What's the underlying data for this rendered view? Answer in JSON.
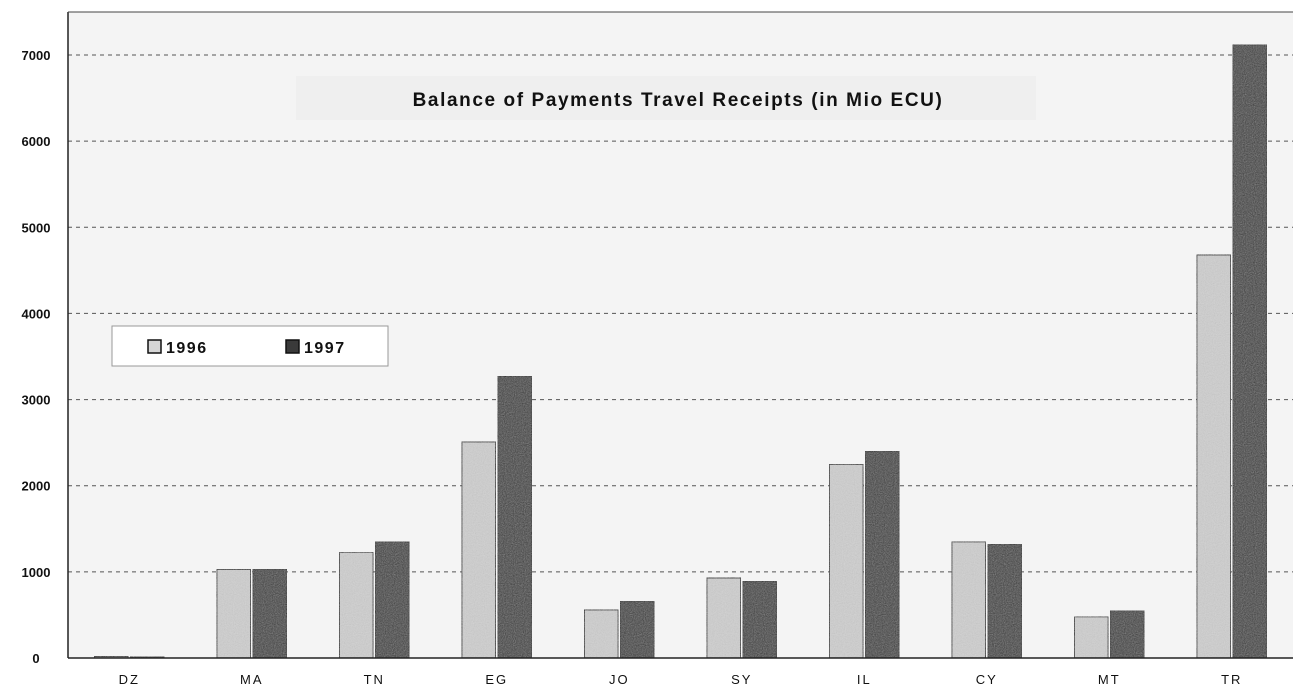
{
  "chart_data": {
    "type": "bar",
    "title": "Balance of Payments Travel Receipts (in Mio ECU)",
    "xlabel": "",
    "ylabel": "",
    "categories": [
      "DZ",
      "MA",
      "TN",
      "EG",
      "JO",
      "SY",
      "IL",
      "CY",
      "MT",
      "TR"
    ],
    "series": [
      {
        "name": "1996",
        "values": [
          20,
          1030,
          1230,
          2510,
          560,
          930,
          2250,
          1350,
          480,
          4680
        ]
      },
      {
        "name": "1997",
        "values": [
          15,
          1030,
          1350,
          3270,
          660,
          890,
          2400,
          1320,
          550,
          7120
        ]
      }
    ],
    "ylim": [
      0,
      7000
    ],
    "yticks": [
      "0",
      "1000",
      "2000",
      "3000",
      "4000",
      "5000",
      "6000",
      "7000"
    ],
    "grid": true,
    "legend_placement": "left",
    "colors": {
      "1996": "#c8c8c8",
      "1997": "#3a3a3a",
      "grid": "#555555",
      "background": "#f2f2f2"
    }
  }
}
